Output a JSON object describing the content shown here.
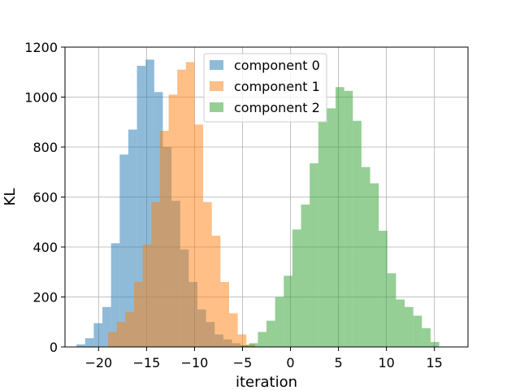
{
  "chart_data": {
    "type": "bar",
    "title": "",
    "xlabel": "iteration",
    "ylabel": "KL",
    "xlim": [
      -23.5,
      18.5
    ],
    "ylim": [
      0,
      1200
    ],
    "xticks": [
      -20,
      -15,
      -10,
      -5,
      0,
      5,
      10,
      15
    ],
    "yticks": [
      0,
      200,
      400,
      600,
      800,
      1000,
      1200
    ],
    "grid": true,
    "legend_position": "upper center",
    "alpha": 0.5,
    "series": [
      {
        "name": "component 0",
        "color": "#1f77b4",
        "bin_edges": [
          -22.3,
          -21.4,
          -20.5,
          -19.6,
          -18.7,
          -17.8,
          -16.9,
          -16.0,
          -15.1,
          -14.2,
          -13.3,
          -12.4,
          -11.5,
          -10.6,
          -9.7,
          -8.8,
          -7.9,
          -7.0,
          -6.1,
          -5.2,
          -4.3,
          -3.4
        ],
        "values": [
          10,
          35,
          95,
          160,
          415,
          770,
          870,
          1125,
          1150,
          1020,
          800,
          585,
          390,
          260,
          150,
          100,
          50,
          30,
          15,
          6,
          2
        ]
      },
      {
        "name": "component 1",
        "color": "#ff7f0e",
        "bin_edges": [
          -19.0,
          -18.1,
          -17.2,
          -16.3,
          -15.4,
          -14.5,
          -13.6,
          -12.7,
          -11.8,
          -10.9,
          -10.0,
          -9.1,
          -8.2,
          -7.3,
          -6.4,
          -5.5,
          -4.6,
          -3.7
        ],
        "values": [
          60,
          100,
          140,
          260,
          410,
          580,
          865,
          1010,
          1110,
          1140,
          890,
          580,
          445,
          260,
          135,
          50,
          10
        ]
      },
      {
        "name": "component 2",
        "color": "#2ca02c",
        "bin_edges": [
          -5.2,
          -4.3,
          -3.4,
          -2.5,
          -1.6,
          -0.7,
          0.2,
          1.1,
          2.0,
          2.9,
          3.8,
          4.7,
          5.6,
          6.5,
          7.4,
          8.3,
          9.2,
          10.1,
          11.0,
          11.9,
          12.8,
          13.7,
          14.6,
          15.5
        ],
        "values": [
          6,
          15,
          60,
          105,
          200,
          285,
          470,
          570,
          735,
          900,
          955,
          1040,
          1025,
          905,
          720,
          655,
          465,
          295,
          190,
          160,
          125,
          75,
          20
        ]
      }
    ]
  }
}
